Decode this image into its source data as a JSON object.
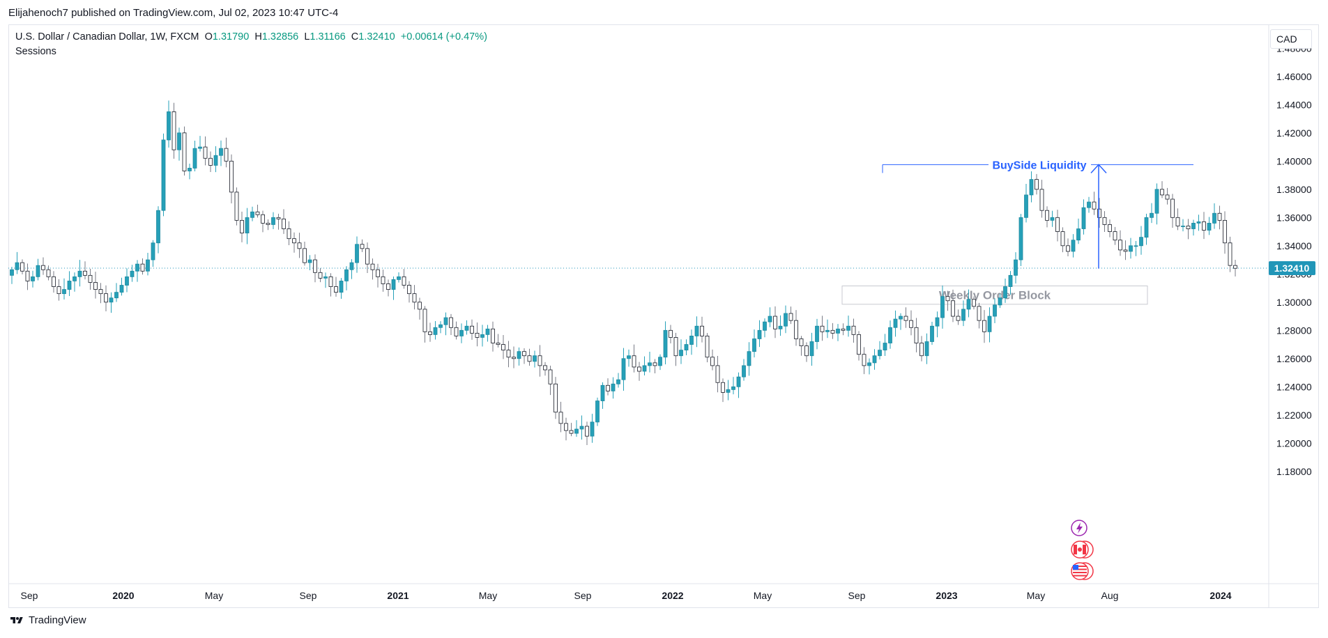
{
  "publisher": {
    "text": "Elijahenoch7 published on TradingView.com, Jul 02, 2023 10:47 UTC-4"
  },
  "legend": {
    "symbol": "U.S. Dollar / Canadian Dollar, 1W, FXCM",
    "open_label": "O",
    "open": "1.31790",
    "high_label": "H",
    "high": "1.32856",
    "low_label": "L",
    "low": "1.31166",
    "close_label": "C",
    "close": "1.32410",
    "change": "+0.00614 (+0.47%)",
    "indicator": "Sessions"
  },
  "currency_button": {
    "label": "CAD"
  },
  "footer": {
    "brand": "TradingView",
    "logo_icon": "tradingview-logo-icon"
  },
  "colors": {
    "up": "#26a0b8",
    "down": "#9598a1",
    "annotation_blue": "#2962ff",
    "price_label_bg": "#2196b8",
    "order_block_text": "#9598a1"
  },
  "chart_data": {
    "type": "candlestick",
    "symbol": "USDCAD",
    "timeframe": "1W",
    "y_axis_ticks": [
      "1.48000",
      "1.46000",
      "1.44000",
      "1.42000",
      "1.40000",
      "1.38000",
      "1.36000",
      "1.34000",
      "1.32000",
      "1.30000",
      "1.28000",
      "1.26000",
      "1.24000",
      "1.22000",
      "1.20000",
      "1.18000"
    ],
    "x_axis_ticks": [
      {
        "label": "Sep",
        "bold": false
      },
      {
        "label": "2020",
        "bold": true
      },
      {
        "label": "May",
        "bold": false
      },
      {
        "label": "Sep",
        "bold": false
      },
      {
        "label": "2021",
        "bold": true
      },
      {
        "label": "May",
        "bold": false
      },
      {
        "label": "Sep",
        "bold": false
      },
      {
        "label": "2022",
        "bold": true
      },
      {
        "label": "May",
        "bold": false
      },
      {
        "label": "Sep",
        "bold": false
      },
      {
        "label": "2023",
        "bold": true
      },
      {
        "label": "May",
        "bold": false
      },
      {
        "label": "Aug",
        "bold": false
      },
      {
        "label": "2024",
        "bold": true
      }
    ],
    "ylim": [
      1.175,
      1.488
    ],
    "last_price": "1.32410",
    "close_series": [
      1.323,
      1.328,
      1.322,
      1.315,
      1.318,
      1.326,
      1.323,
      1.318,
      1.311,
      1.306,
      1.309,
      1.315,
      1.318,
      1.322,
      1.319,
      1.314,
      1.309,
      1.306,
      1.3,
      1.303,
      1.307,
      1.312,
      1.318,
      1.322,
      1.327,
      1.322,
      1.33,
      1.342,
      1.365,
      1.415,
      1.435,
      1.408,
      1.42,
      1.393,
      1.395,
      1.409,
      1.41,
      1.402,
      1.397,
      1.404,
      1.409,
      1.4,
      1.378,
      1.358,
      1.349,
      1.36,
      1.364,
      1.362,
      1.356,
      1.355,
      1.36,
      1.359,
      1.352,
      1.345,
      1.342,
      1.338,
      1.328,
      1.33,
      1.321,
      1.317,
      1.318,
      1.311,
      1.307,
      1.315,
      1.323,
      1.328,
      1.341,
      1.338,
      1.327,
      1.323,
      1.318,
      1.313,
      1.309,
      1.316,
      1.318,
      1.312,
      1.306,
      1.3,
      1.295,
      1.279,
      1.277,
      1.282,
      1.284,
      1.289,
      1.282,
      1.276,
      1.28,
      1.283,
      1.278,
      1.275,
      1.277,
      1.281,
      1.271,
      1.27,
      1.266,
      1.261,
      1.26,
      1.265,
      1.262,
      1.258,
      1.262,
      1.255,
      1.252,
      1.242,
      1.222,
      1.214,
      1.209,
      1.207,
      1.21,
      1.212,
      1.205,
      1.215,
      1.23,
      1.241,
      1.237,
      1.242,
      1.245,
      1.26,
      1.262,
      1.254,
      1.251,
      1.255,
      1.257,
      1.255,
      1.261,
      1.28,
      1.275,
      1.262,
      1.266,
      1.27,
      1.276,
      1.283,
      1.276,
      1.261,
      1.255,
      1.243,
      1.236,
      1.238,
      1.24,
      1.247,
      1.255,
      1.265,
      1.274,
      1.28,
      1.286,
      1.29,
      1.281,
      1.283,
      1.292,
      1.287,
      1.274,
      1.269,
      1.262,
      1.272,
      1.283,
      1.279,
      1.28,
      1.278,
      1.281,
      1.28,
      1.283,
      1.277,
      1.263,
      1.255,
      1.257,
      1.262,
      1.266,
      1.271,
      1.282,
      1.288,
      1.29,
      1.287,
      1.282,
      1.271,
      1.262,
      1.272,
      1.283,
      1.289,
      1.304,
      1.301,
      1.29,
      1.287,
      1.295,
      1.302,
      1.297,
      1.287,
      1.279,
      1.29,
      1.298,
      1.303,
      1.311,
      1.319,
      1.33,
      1.36,
      1.376,
      1.387,
      1.38,
      1.365,
      1.358,
      1.36,
      1.35,
      1.34,
      1.336,
      1.344,
      1.352,
      1.367,
      1.371,
      1.366,
      1.36,
      1.355,
      1.35,
      1.344,
      1.337,
      1.336,
      1.34,
      1.34,
      1.346,
      1.36,
      1.363,
      1.38,
      1.376,
      1.373,
      1.36,
      1.354,
      1.354,
      1.352,
      1.356,
      1.357,
      1.351,
      1.356,
      1.363,
      1.358,
      1.342,
      1.326,
      1.324
    ],
    "annotations": [
      {
        "type": "horizontal-line",
        "label": "BuySide Liquidity",
        "price": 1.3975
      },
      {
        "type": "arrow-up",
        "from_price": 1.3238,
        "to_price": 1.3975
      },
      {
        "type": "rectangle",
        "label": "Weekly Order Block",
        "price_top": 1.3115,
        "price_bottom": 1.2985
      }
    ]
  },
  "chart_icons": [
    "lightning-event-icon",
    "canada-flag-icon",
    "us-flag-icon"
  ]
}
